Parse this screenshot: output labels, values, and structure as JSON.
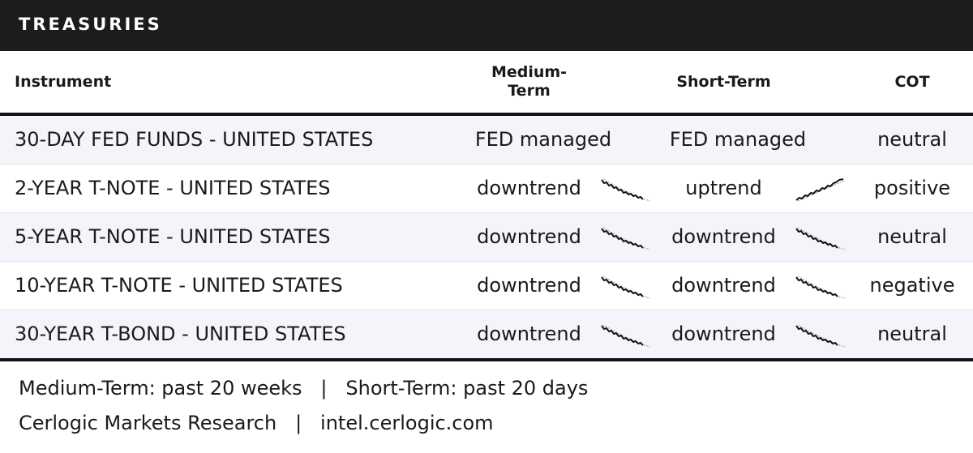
{
  "header": {
    "title": "TREASURIES"
  },
  "columns": {
    "instrument": "Instrument",
    "medium": "Medium-\nTerm",
    "short": "Short-Term",
    "cot": "COT"
  },
  "rows": [
    {
      "instrument": "30-DAY FED FUNDS - UNITED STATES",
      "medium": "FED managed",
      "short": "FED managed",
      "cot": "neutral",
      "medium_spark": null,
      "short_spark": null
    },
    {
      "instrument": "2-YEAR T-NOTE - UNITED STATES",
      "medium": "downtrend",
      "short": "uptrend",
      "cot": "positive",
      "medium_spark": "down",
      "short_spark": "up"
    },
    {
      "instrument": "5-YEAR T-NOTE - UNITED STATES",
      "medium": "downtrend",
      "short": "downtrend",
      "cot": "neutral",
      "medium_spark": "down",
      "short_spark": "down"
    },
    {
      "instrument": "10-YEAR T-NOTE - UNITED STATES",
      "medium": "downtrend",
      "short": "downtrend",
      "cot": "negative",
      "medium_spark": "down",
      "short_spark": "down"
    },
    {
      "instrument": "30-YEAR T-BOND - UNITED STATES",
      "medium": "downtrend",
      "short": "downtrend",
      "cot": "neutral",
      "medium_spark": "down",
      "short_spark": "down"
    }
  ],
  "footer": {
    "legend": "Medium-Term: past 20 weeks   |   Short-Term: past 20 days",
    "credit": "Cerlogic Markets Research   |   intel.cerlogic.com"
  },
  "colors": {
    "header_bg": "#1c1c1c",
    "row_shade": "#f4f5fa",
    "rule": "#111111"
  }
}
